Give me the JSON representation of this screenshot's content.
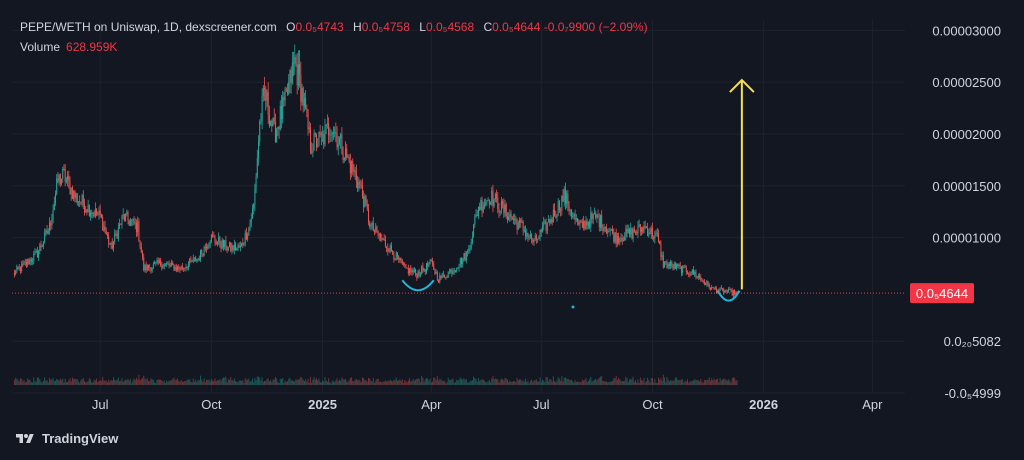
{
  "legend": {
    "pair": "PEPE/WETH on Uniswap, 1D, dexscreener.com",
    "o_label": "O",
    "o_value": "0.0₅4743",
    "h_label": "H",
    "h_value": "0.0₅4758",
    "l_label": "L",
    "l_value": "0.0₅4568",
    "c_label": "C",
    "c_value": "0.0₅4644",
    "change": "-0.0₇9900 (−2.09%)",
    "volume_label": "Volume",
    "volume_value": "628.959K"
  },
  "footer": {
    "brand": "TradingView"
  },
  "colors": {
    "background": "#131722",
    "up": "#26a69a",
    "down": "#ef5350",
    "volume_up": "#26a69a",
    "volume_down": "#ef5350",
    "price_line": "#f23645",
    "arrow": "#f7e04b",
    "curve": "#22b5d6",
    "axis_text": "#d1d4dc"
  },
  "chart_data": {
    "type": "candlestick",
    "ylim": [
      -5e-06,
      3.1e-05
    ],
    "y_ticks": [
      "0.00003000",
      "0.00002500",
      "0.00002000",
      "0.00001500",
      "0.00001000",
      "0.0₂₀5082",
      "-0.0₅4999"
    ],
    "y_tick_values": [
      3e-05,
      2.5e-05,
      2e-05,
      1.5e-05,
      1e-05,
      5.082e-22,
      -4.999e-06
    ],
    "x_ticks": [
      "Jul",
      "Oct",
      "2025",
      "Apr",
      "Jul",
      "Oct",
      "2026",
      "Apr"
    ],
    "x_tick_dates": [
      "2024-07-01",
      "2024-10-01",
      "2025-01-01",
      "2025-04-01",
      "2025-07-01",
      "2025-10-01",
      "2026-01-01",
      "2026-04-01"
    ],
    "x_range": [
      "2024-04-19",
      "2026-04-28"
    ],
    "last_price_label": "0.0₅4644",
    "last_price": 4.644e-06,
    "price_anchors": [
      [
        "2024-04-20",
        6.5e-06
      ],
      [
        "2024-05-01",
        7.5e-06
      ],
      [
        "2024-05-10",
        8.5e-06
      ],
      [
        "2024-05-20",
        1.1e-05
      ],
      [
        "2024-05-27",
        1.55e-05
      ],
      [
        "2024-06-01",
        1.6e-05
      ],
      [
        "2024-06-10",
        1.4e-05
      ],
      [
        "2024-06-20",
        1.3e-05
      ],
      [
        "2024-07-01",
        1.2e-05
      ],
      [
        "2024-07-10",
        9e-06
      ],
      [
        "2024-07-20",
        1.2e-05
      ],
      [
        "2024-08-01",
        1.1e-05
      ],
      [
        "2024-08-06",
        7e-06
      ],
      [
        "2024-08-20",
        7.5e-06
      ],
      [
        "2024-09-05",
        7e-06
      ],
      [
        "2024-09-20",
        8e-06
      ],
      [
        "2024-09-30",
        1e-05
      ],
      [
        "2024-10-15",
        9e-06
      ],
      [
        "2024-10-25",
        9e-06
      ],
      [
        "2024-11-01",
        1.1e-05
      ],
      [
        "2024-11-05",
        1.3e-05
      ],
      [
        "2024-11-10",
        2.1e-05
      ],
      [
        "2024-11-14",
        2.4e-05
      ],
      [
        "2024-11-22",
        2e-05
      ],
      [
        "2024-12-01",
        2.3e-05
      ],
      [
        "2024-12-09",
        2.7e-05
      ],
      [
        "2024-12-15",
        2.4e-05
      ],
      [
        "2024-12-22",
        1.9e-05
      ],
      [
        "2025-01-01",
        1.95e-05
      ],
      [
        "2025-01-08",
        2.1e-05
      ],
      [
        "2025-01-20",
        1.8e-05
      ],
      [
        "2025-02-01",
        1.5e-05
      ],
      [
        "2025-02-10",
        1.1e-05
      ],
      [
        "2025-02-25",
        9e-06
      ],
      [
        "2025-03-10",
        7e-06
      ],
      [
        "2025-03-20",
        6.5e-06
      ],
      [
        "2025-04-01",
        7.5e-06
      ],
      [
        "2025-04-07",
        6e-06
      ],
      [
        "2025-04-20",
        7e-06
      ],
      [
        "2025-05-01",
        8.5e-06
      ],
      [
        "2025-05-10",
        1.3e-05
      ],
      [
        "2025-05-20",
        1.4e-05
      ],
      [
        "2025-06-01",
        1.25e-05
      ],
      [
        "2025-06-15",
        1.1e-05
      ],
      [
        "2025-06-25",
        9.5e-06
      ],
      [
        "2025-07-10",
        1.2e-05
      ],
      [
        "2025-07-20",
        1.4e-05
      ],
      [
        "2025-08-01",
        1.1e-05
      ],
      [
        "2025-08-15",
        1.2e-05
      ],
      [
        "2025-09-01",
        1e-05
      ],
      [
        "2025-09-15",
        1.05e-05
      ],
      [
        "2025-09-25",
        1.1e-05
      ],
      [
        "2025-10-05",
        1e-05
      ],
      [
        "2025-10-10",
        7.5e-06
      ],
      [
        "2025-10-25",
        7e-06
      ],
      [
        "2025-11-05",
        6.5e-06
      ],
      [
        "2025-11-20",
        5e-06
      ],
      [
        "2025-12-01",
        4.8e-06
      ],
      [
        "2025-12-10",
        4.6e-06
      ]
    ],
    "annotations": [
      {
        "type": "arrow",
        "direction": "up",
        "from_date": "2025-12-14",
        "from_value": 5e-06,
        "to_value": 2.52e-05
      },
      {
        "type": "curve",
        "label": "bottom",
        "from_date": "2025-03-08",
        "to_date": "2025-04-03",
        "value": 5.3e-06
      },
      {
        "type": "curve",
        "label": "bottom",
        "from_date": "2025-11-24",
        "to_date": "2025-12-12",
        "value": 4.3e-06
      }
    ]
  }
}
